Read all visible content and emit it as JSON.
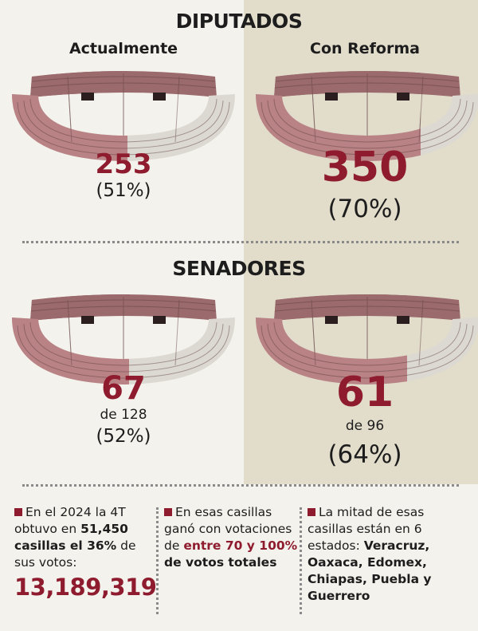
{
  "diputados": {
    "title": "DIPUTADOS",
    "actual": {
      "label": "Actualmente",
      "seats": "253",
      "percent": "(51%)"
    },
    "reforma": {
      "label": "Con Reforma",
      "seats": "350",
      "percent": "(70%)"
    }
  },
  "senadores": {
    "title": "SENADORES",
    "actual": {
      "seats": "67",
      "total": "de 128",
      "percent": "(52%)"
    },
    "reforma": {
      "seats": "61",
      "total": "de 96",
      "percent": "(64%)"
    }
  },
  "notes": [
    {
      "text": "En el 2024 la 4T obtuvo en",
      "highlight": "51,450 casillas el 36%",
      "text2": "de sus votos:",
      "figure": "13,189,319"
    },
    {
      "text": "En esas casillas ganó con votaciones de",
      "figure": "entre 70 y 100%",
      "highlight": "de votos totales"
    },
    {
      "text": "La mitad de esas casillas están en 6 estados:",
      "highlight": "Veracruz, Oaxaca, Edomex, Chiapas, Puebla y Guerrero"
    }
  ]
}
